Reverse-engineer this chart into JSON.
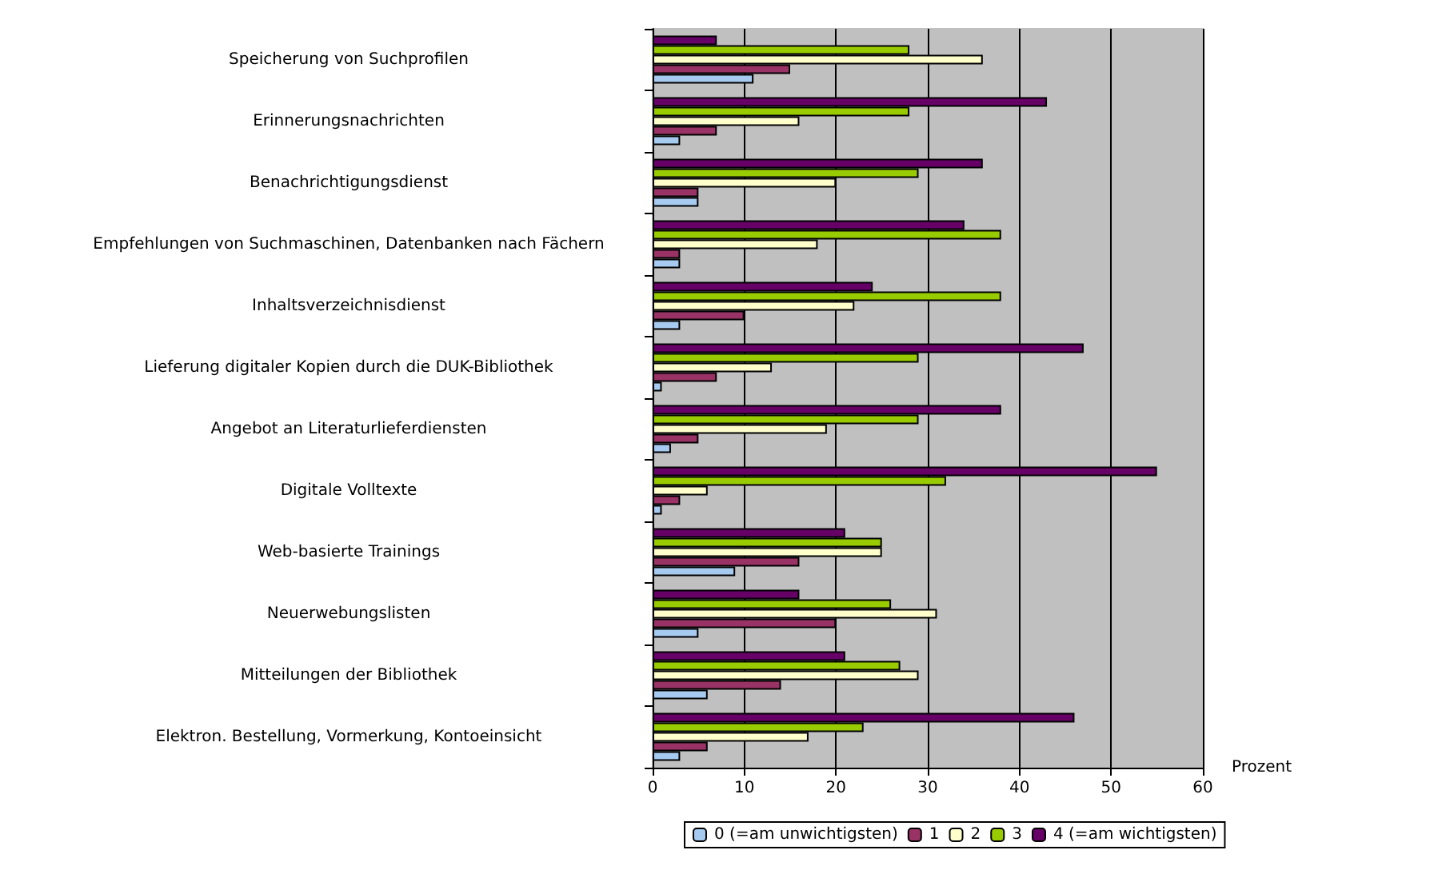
{
  "chart_data": {
    "type": "bar",
    "orientation": "horizontal",
    "xlabel": "Prozent",
    "categories": [
      "Speicherung von Suchprofilen",
      "Erinnerungsnachrichten",
      "Benachrichtigungsdienst",
      "Empfehlungen von Suchmaschinen, Datenbanken nach Fächern",
      "Inhaltsverzeichnisdienst",
      "Lieferung digitaler Kopien durch die DUK-Bibliothek",
      "Angebot an Literaturlieferdiensten",
      "Digitale Volltexte",
      "Web-basierte Trainings",
      "Neuerwebungslisten",
      "Mitteilungen der Bibliothek",
      "Elektron. Bestellung, Vormerkung, Kontoeinsicht"
    ],
    "series": [
      {
        "name": "0 (=am unwichtigsten)",
        "color": "#a6caf0",
        "values": [
          11,
          3,
          5,
          3,
          3,
          1,
          2,
          1,
          9,
          5,
          6,
          3
        ]
      },
      {
        "name": "1",
        "color": "#993366",
        "values": [
          15,
          7,
          5,
          3,
          10,
          7,
          5,
          3,
          16,
          20,
          14,
          6
        ]
      },
      {
        "name": "2",
        "color": "#ffffcc",
        "values": [
          36,
          16,
          20,
          18,
          22,
          13,
          19,
          6,
          25,
          31,
          29,
          17
        ]
      },
      {
        "name": "3",
        "color": "#99cc00",
        "values": [
          28,
          28,
          29,
          38,
          38,
          29,
          29,
          32,
          25,
          26,
          27,
          23
        ]
      },
      {
        "name": "4 (=am wichtigsten)",
        "color": "#660066",
        "values": [
          7,
          43,
          36,
          34,
          24,
          47,
          38,
          55,
          21,
          16,
          21,
          46
        ]
      }
    ],
    "xlim": [
      0,
      60
    ],
    "xticks": [
      0,
      10,
      20,
      30,
      40,
      50,
      60
    ],
    "grid": "x",
    "legend": "bottom"
  }
}
